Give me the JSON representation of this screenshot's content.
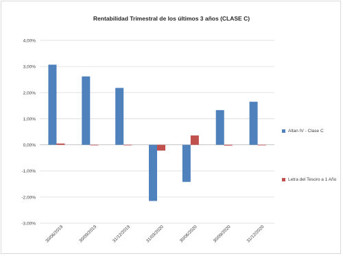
{
  "chart_data": {
    "type": "bar",
    "title": "Rentabilidad Trimestral de los últimos 3 años (CLASE C)",
    "categories": [
      "30/06/2019",
      "30/09/2019",
      "31/12/2019",
      "31/03/2020",
      "30/06/2020",
      "30/09/2020",
      "31/12/2020"
    ],
    "series": [
      {
        "name": "Altan IV - Clase C",
        "color": "#4f81bd",
        "values": [
          3.07,
          2.62,
          2.18,
          -2.15,
          -1.42,
          1.33,
          1.65
        ]
      },
      {
        "name": "Letra del Tesoro a 1 Año",
        "color": "#c0504d",
        "values": [
          0.05,
          0.0,
          0.0,
          -0.22,
          0.36,
          -0.03,
          0.0
        ]
      }
    ],
    "yticks": [
      "4,00%",
      "3,00%",
      "2,00%",
      "1,00%",
      "0,00%",
      "-1,00%",
      "-2,00%",
      "-3,00%"
    ],
    "ylim": [
      -3,
      4
    ],
    "grid": true,
    "legend_position": "right"
  }
}
